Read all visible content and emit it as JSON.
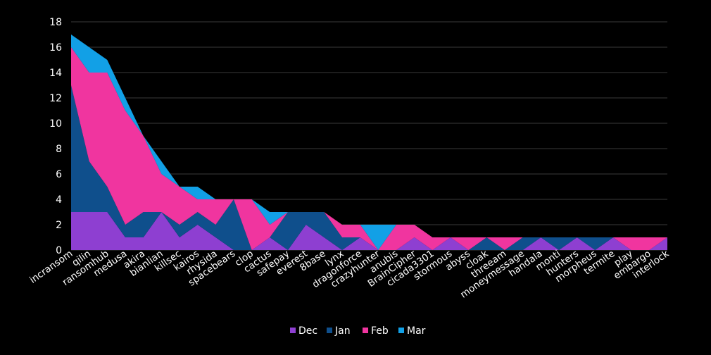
{
  "chart_data": {
    "type": "area",
    "stacked": true,
    "title": "",
    "xlabel": "",
    "ylabel": "",
    "ylim": [
      0,
      18
    ],
    "yticks": [
      0,
      2,
      4,
      6,
      8,
      10,
      12,
      14,
      16,
      18
    ],
    "grid": true,
    "legend": "bottom-center",
    "categories": [
      "incransom",
      "qilin",
      "ransomhub",
      "medusa",
      "akira",
      "bianlian",
      "killsec",
      "kairos",
      "rhysida",
      "spacebears",
      "clop",
      "cactus",
      "safepay",
      "everest",
      "8base",
      "lynx",
      "dragonforce",
      "crazyhunter",
      "anubis",
      "BrainCipher",
      "cicada3301",
      "stormous",
      "abyss",
      "cloak",
      "threeam",
      "moneymessage",
      "handala",
      "monti",
      "hunters",
      "morpheus",
      "termite",
      "play",
      "embargo",
      "interlock"
    ],
    "series": [
      {
        "name": "Dec",
        "color": "#8e3fd1",
        "values": [
          3,
          3,
          3,
          1,
          1,
          3,
          1,
          2,
          1,
          0,
          0,
          1,
          0,
          2,
          1,
          0,
          1,
          0,
          0,
          1,
          0,
          1,
          0,
          0,
          0,
          0,
          1,
          0,
          1,
          0,
          1,
          0,
          0,
          1
        ]
      },
      {
        "name": "Jan",
        "color": "#0f4f8c",
        "values": [
          10,
          4,
          2,
          1,
          2,
          0,
          1,
          1,
          1,
          4,
          0,
          0,
          3,
          1,
          2,
          1,
          0,
          0,
          0,
          0,
          0,
          0,
          0,
          1,
          0,
          1,
          0,
          1,
          0,
          1,
          0,
          0,
          0,
          0
        ]
      },
      {
        "name": "Feb",
        "color": "#f0359f",
        "values": [
          3,
          7,
          9,
          9,
          6,
          3,
          3,
          1,
          2,
          0,
          4,
          1,
          0,
          0,
          0,
          1,
          1,
          0,
          2,
          1,
          1,
          0,
          1,
          0,
          1,
          0,
          0,
          0,
          0,
          0,
          0,
          1,
          1,
          0
        ]
      },
      {
        "name": "Mar",
        "color": "#12a0e6",
        "values": [
          1,
          2,
          1,
          1,
          0,
          1,
          0,
          1,
          0,
          0,
          0,
          1,
          0,
          0,
          0,
          0,
          0,
          2,
          0,
          0,
          0,
          0,
          0,
          0,
          0,
          0,
          0,
          0,
          0,
          0,
          0,
          0,
          0,
          0
        ]
      }
    ]
  }
}
